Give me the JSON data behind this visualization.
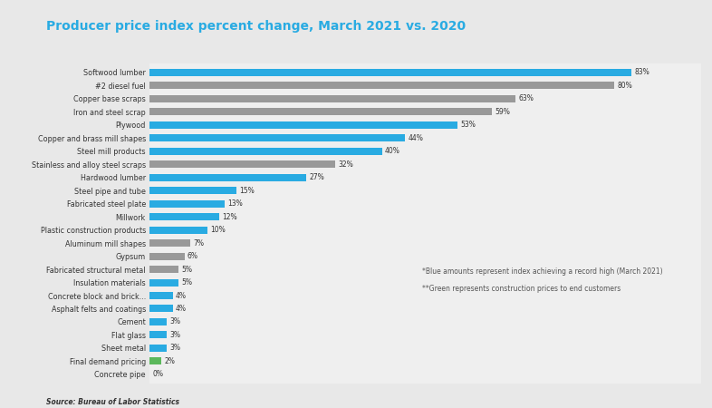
{
  "title": "Producer price index percent change, March 2021 vs. 2020",
  "categories": [
    "Concrete pipe",
    "Final demand pricing",
    "Sheet metal",
    "Flat glass",
    "Cement",
    "Asphalt felts and coatings",
    "Concrete block and brick...",
    "Insulation materials",
    "Fabricated structural metal",
    "Gypsum",
    "Aluminum mill shapes",
    "Plastic construction products",
    "Millwork",
    "Fabricated steel plate",
    "Steel pipe and tube",
    "Hardwood lumber",
    "Stainless and alloy steel scraps",
    "Steel mill products",
    "Copper and brass mill shapes",
    "Plywood",
    "Iron and steel scrap",
    "Copper base scraps",
    "#2 diesel fuel",
    "Softwood lumber"
  ],
  "values": [
    0,
    2,
    3,
    3,
    3,
    4,
    4,
    5,
    5,
    6,
    7,
    10,
    12,
    13,
    15,
    27,
    32,
    40,
    44,
    53,
    59,
    63,
    80,
    83
  ],
  "colors": [
    "#29abe2",
    "#5cb85c",
    "#29abe2",
    "#29abe2",
    "#29abe2",
    "#29abe2",
    "#29abe2",
    "#29abe2",
    "#999999",
    "#999999",
    "#999999",
    "#29abe2",
    "#29abe2",
    "#29abe2",
    "#29abe2",
    "#29abe2",
    "#999999",
    "#29abe2",
    "#29abe2",
    "#29abe2",
    "#999999",
    "#999999",
    "#999999",
    "#29abe2"
  ],
  "annotation1": "*Blue amounts represent index achieving a record high (March 2021)",
  "annotation2": "**Green represents construction prices to end customers",
  "source": "Source: Bureau of Labor Statistics",
  "outer_bg_color": "#e8e8e8",
  "inner_bg_color": "#efefef",
  "title_color": "#29abe2",
  "bar_height": 0.55,
  "xlim": [
    0,
    95
  ]
}
